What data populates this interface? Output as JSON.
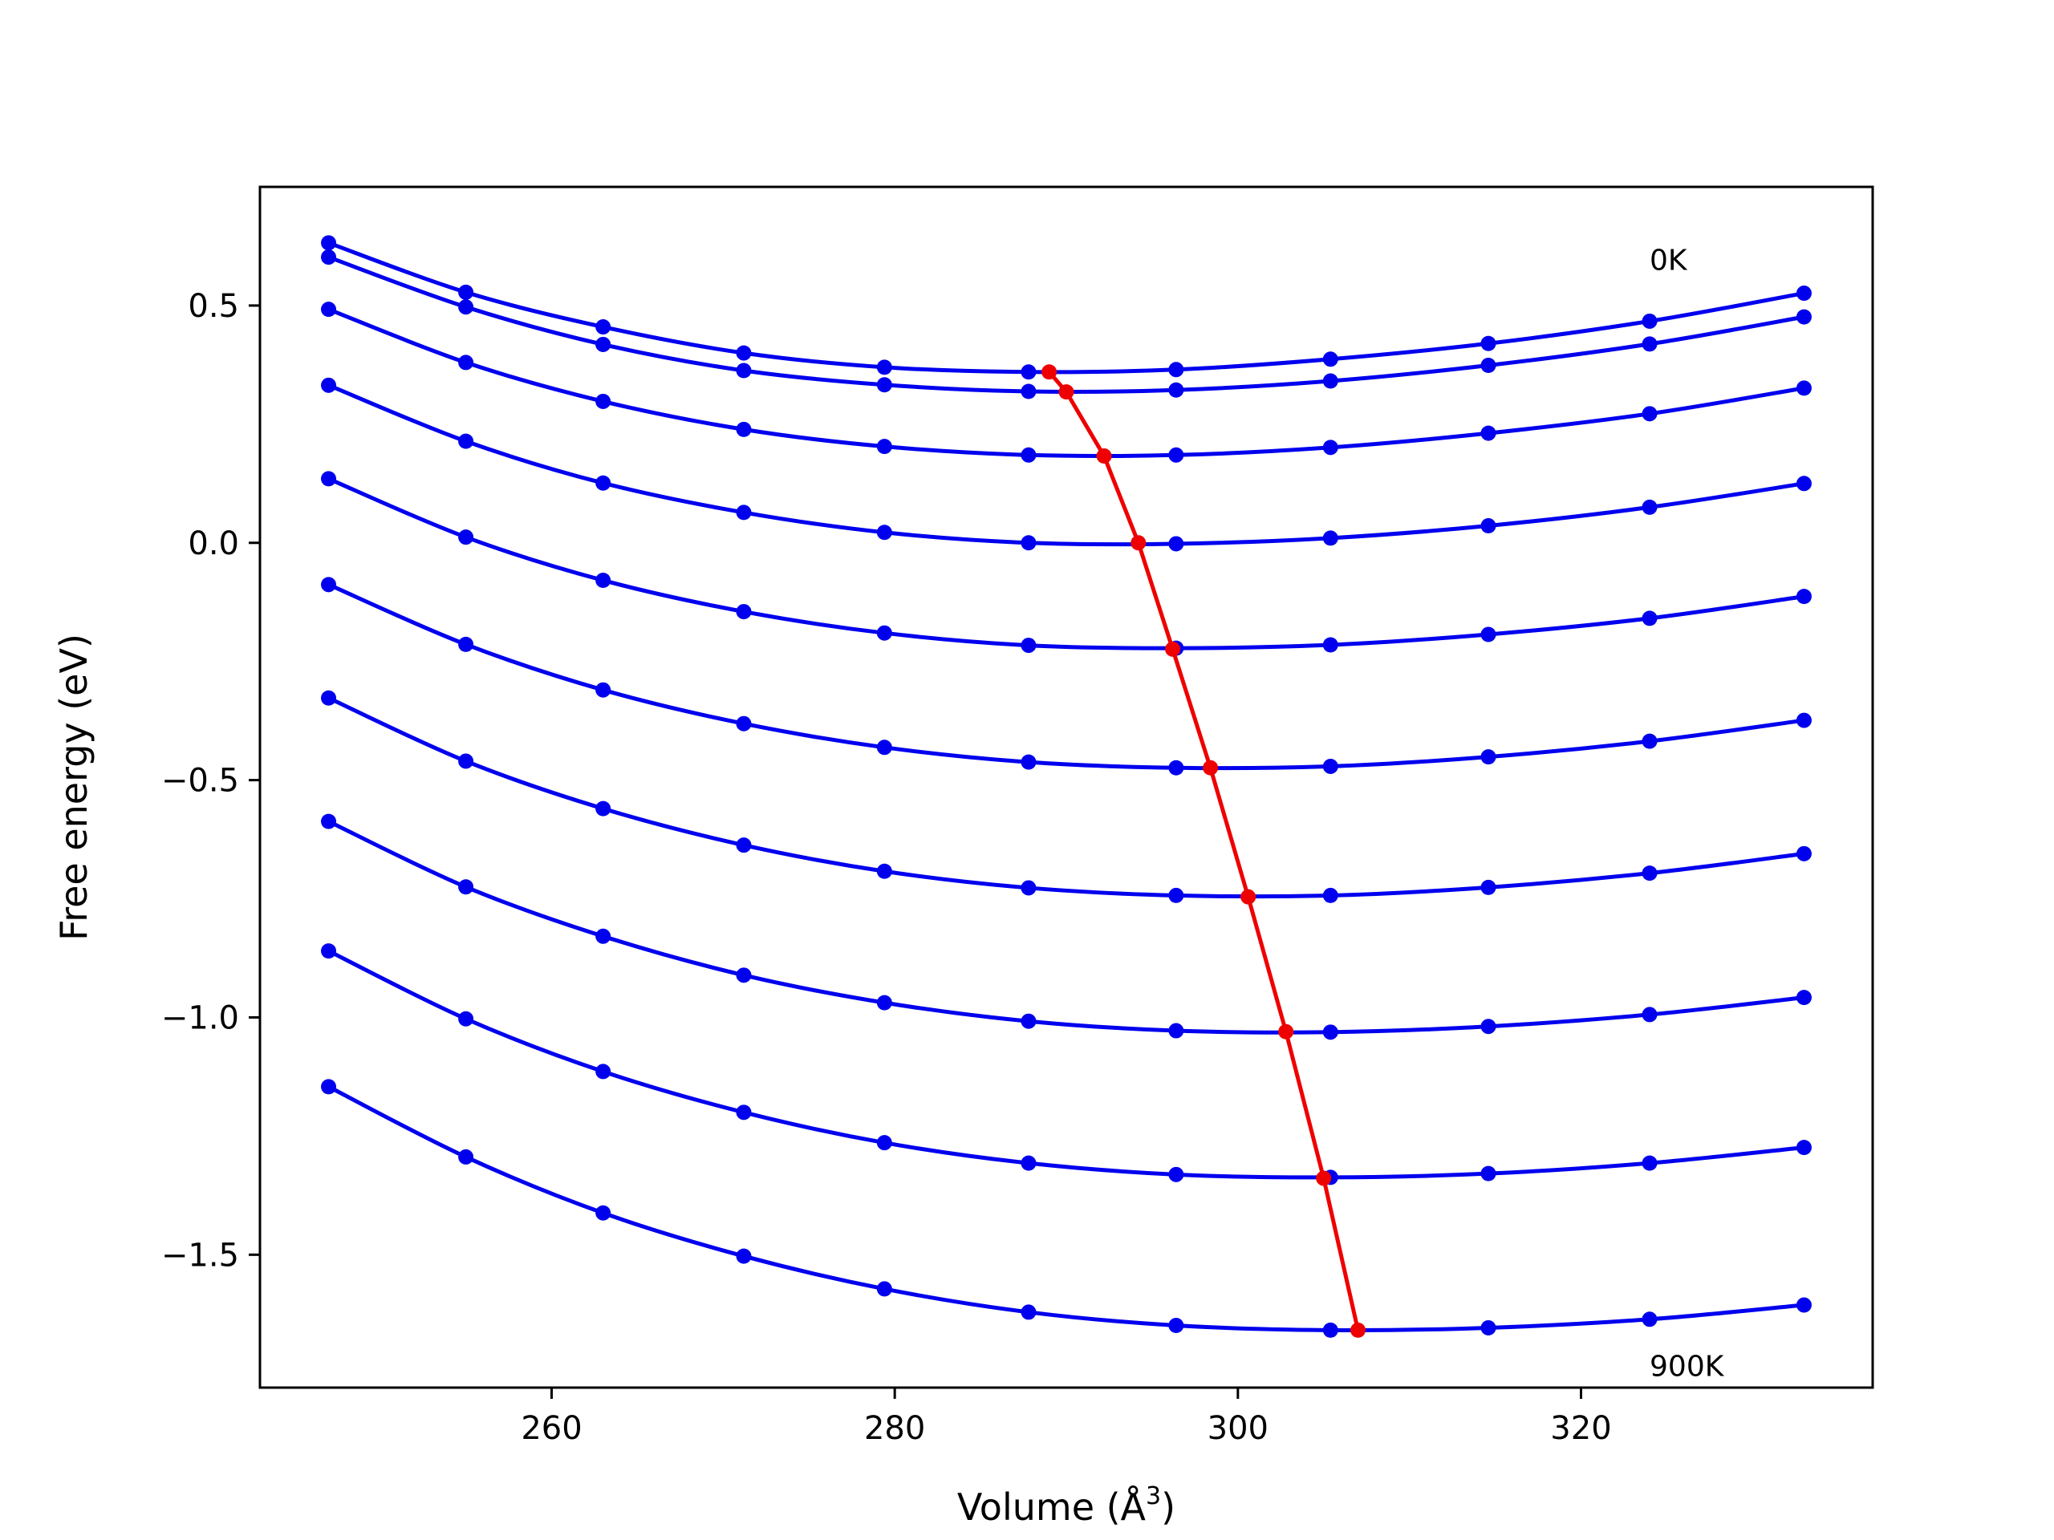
{
  "chart_data": {
    "type": "line",
    "xlabel": "Volume (Å",
    "xlabel_sup": "3",
    "xlabel_close": ")",
    "ylabel": "Free energy (eV)",
    "xlim": [
      243,
      337
    ],
    "ylim": [
      -1.78,
      0.75
    ],
    "x_ticks": [
      260,
      280,
      300,
      320
    ],
    "y_ticks": [
      0.5,
      0.0,
      -0.5,
      -1.0,
      -1.5
    ],
    "x_tick_labels": [
      "260",
      "280",
      "300",
      "320"
    ],
    "y_tick_labels": [
      "0.5",
      "0.0",
      "−0.5",
      "−1.0",
      "−1.5"
    ],
    "grid": false,
    "legend": "none",
    "annotations": [
      {
        "text": "0K",
        "x": 324,
        "y": 0.595
      },
      {
        "text": "900K",
        "x": 324,
        "y": -1.735
      }
    ],
    "colors": {
      "curves": "#0000ee",
      "minimum_path": "#ee0000"
    },
    "x": [
      247.0,
      255.0,
      263.0,
      271.2,
      279.4,
      287.8,
      296.4,
      305.4,
      314.6,
      324.0,
      333.0
    ],
    "series": [
      {
        "values": [
          0.632,
          0.528,
          0.455,
          0.4,
          0.37,
          0.36,
          0.365,
          0.387,
          0.42,
          0.467,
          0.526
        ]
      },
      {
        "values": [
          0.602,
          0.497,
          0.418,
          0.363,
          0.333,
          0.319,
          0.322,
          0.341,
          0.374,
          0.419,
          0.476
        ]
      },
      {
        "values": [
          0.492,
          0.38,
          0.298,
          0.239,
          0.203,
          0.185,
          0.185,
          0.201,
          0.231,
          0.272,
          0.326
        ]
      },
      {
        "values": [
          0.332,
          0.214,
          0.126,
          0.064,
          0.022,
          0.0,
          -0.002,
          0.01,
          0.036,
          0.075,
          0.125
        ]
      },
      {
        "values": [
          0.135,
          0.012,
          -0.079,
          -0.145,
          -0.19,
          -0.216,
          -0.222,
          -0.215,
          -0.193,
          -0.159,
          -0.113
        ]
      },
      {
        "values": [
          -0.088,
          -0.214,
          -0.31,
          -0.381,
          -0.431,
          -0.462,
          -0.474,
          -0.471,
          -0.451,
          -0.418,
          -0.374
        ]
      },
      {
        "values": [
          -0.327,
          -0.46,
          -0.56,
          -0.637,
          -0.692,
          -0.727,
          -0.743,
          -0.743,
          -0.726,
          -0.696,
          -0.655
        ]
      },
      {
        "values": [
          -0.587,
          -0.725,
          -0.829,
          -0.911,
          -0.969,
          -1.008,
          -1.028,
          -1.031,
          -1.019,
          -0.994,
          -0.958
        ]
      },
      {
        "values": [
          -0.86,
          -1.003,
          -1.114,
          -1.2,
          -1.264,
          -1.307,
          -1.331,
          -1.337,
          -1.329,
          -1.307,
          -1.274
        ]
      },
      {
        "values": [
          -1.146,
          -1.294,
          -1.412,
          -1.503,
          -1.572,
          -1.621,
          -1.649,
          -1.659,
          -1.654,
          -1.636,
          -1.606
        ]
      }
    ],
    "minimum_path": {
      "x": [
        289.0,
        290.0,
        292.2,
        294.2,
        296.2,
        298.4,
        300.6,
        302.8,
        305.0,
        307.0
      ],
      "y": [
        0.36,
        0.318,
        0.183,
        0.0,
        -0.224,
        -0.474,
        -0.746,
        -1.03,
        -1.339,
        -1.659
      ]
    }
  }
}
